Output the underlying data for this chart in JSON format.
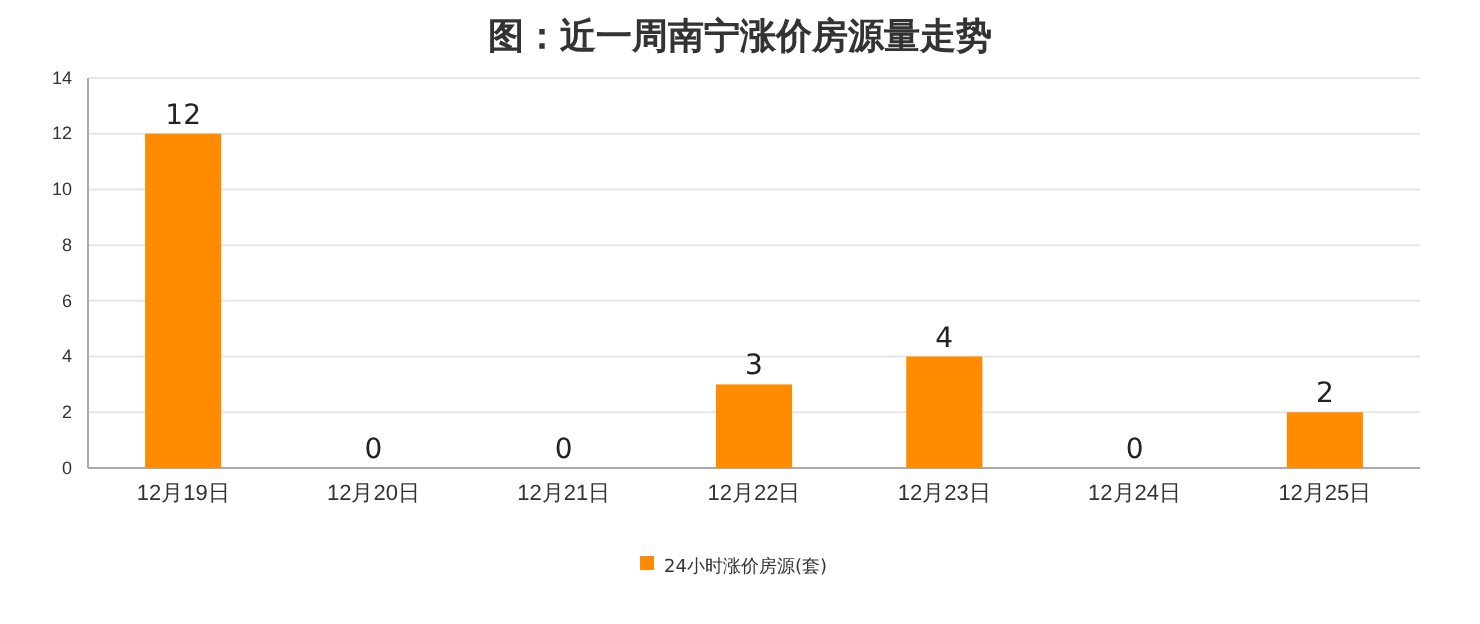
{
  "chart_data": {
    "type": "bar",
    "title": "图：近一周南宁涨价房源量走势",
    "categories": [
      "12月19日",
      "12月20日",
      "12月21日",
      "12月22日",
      "12月23日",
      "12月24日",
      "12月25日"
    ],
    "series": [
      {
        "name": "24小时涨价房源(套)",
        "color": "#ff8c00",
        "values": [
          12,
          0,
          0,
          3,
          4,
          0,
          2
        ]
      }
    ],
    "ylim": [
      0,
      14
    ],
    "yticks": [
      0,
      2,
      4,
      6,
      8,
      10,
      12,
      14
    ],
    "grid": "y",
    "legend": "bottom",
    "data_labels": true
  }
}
